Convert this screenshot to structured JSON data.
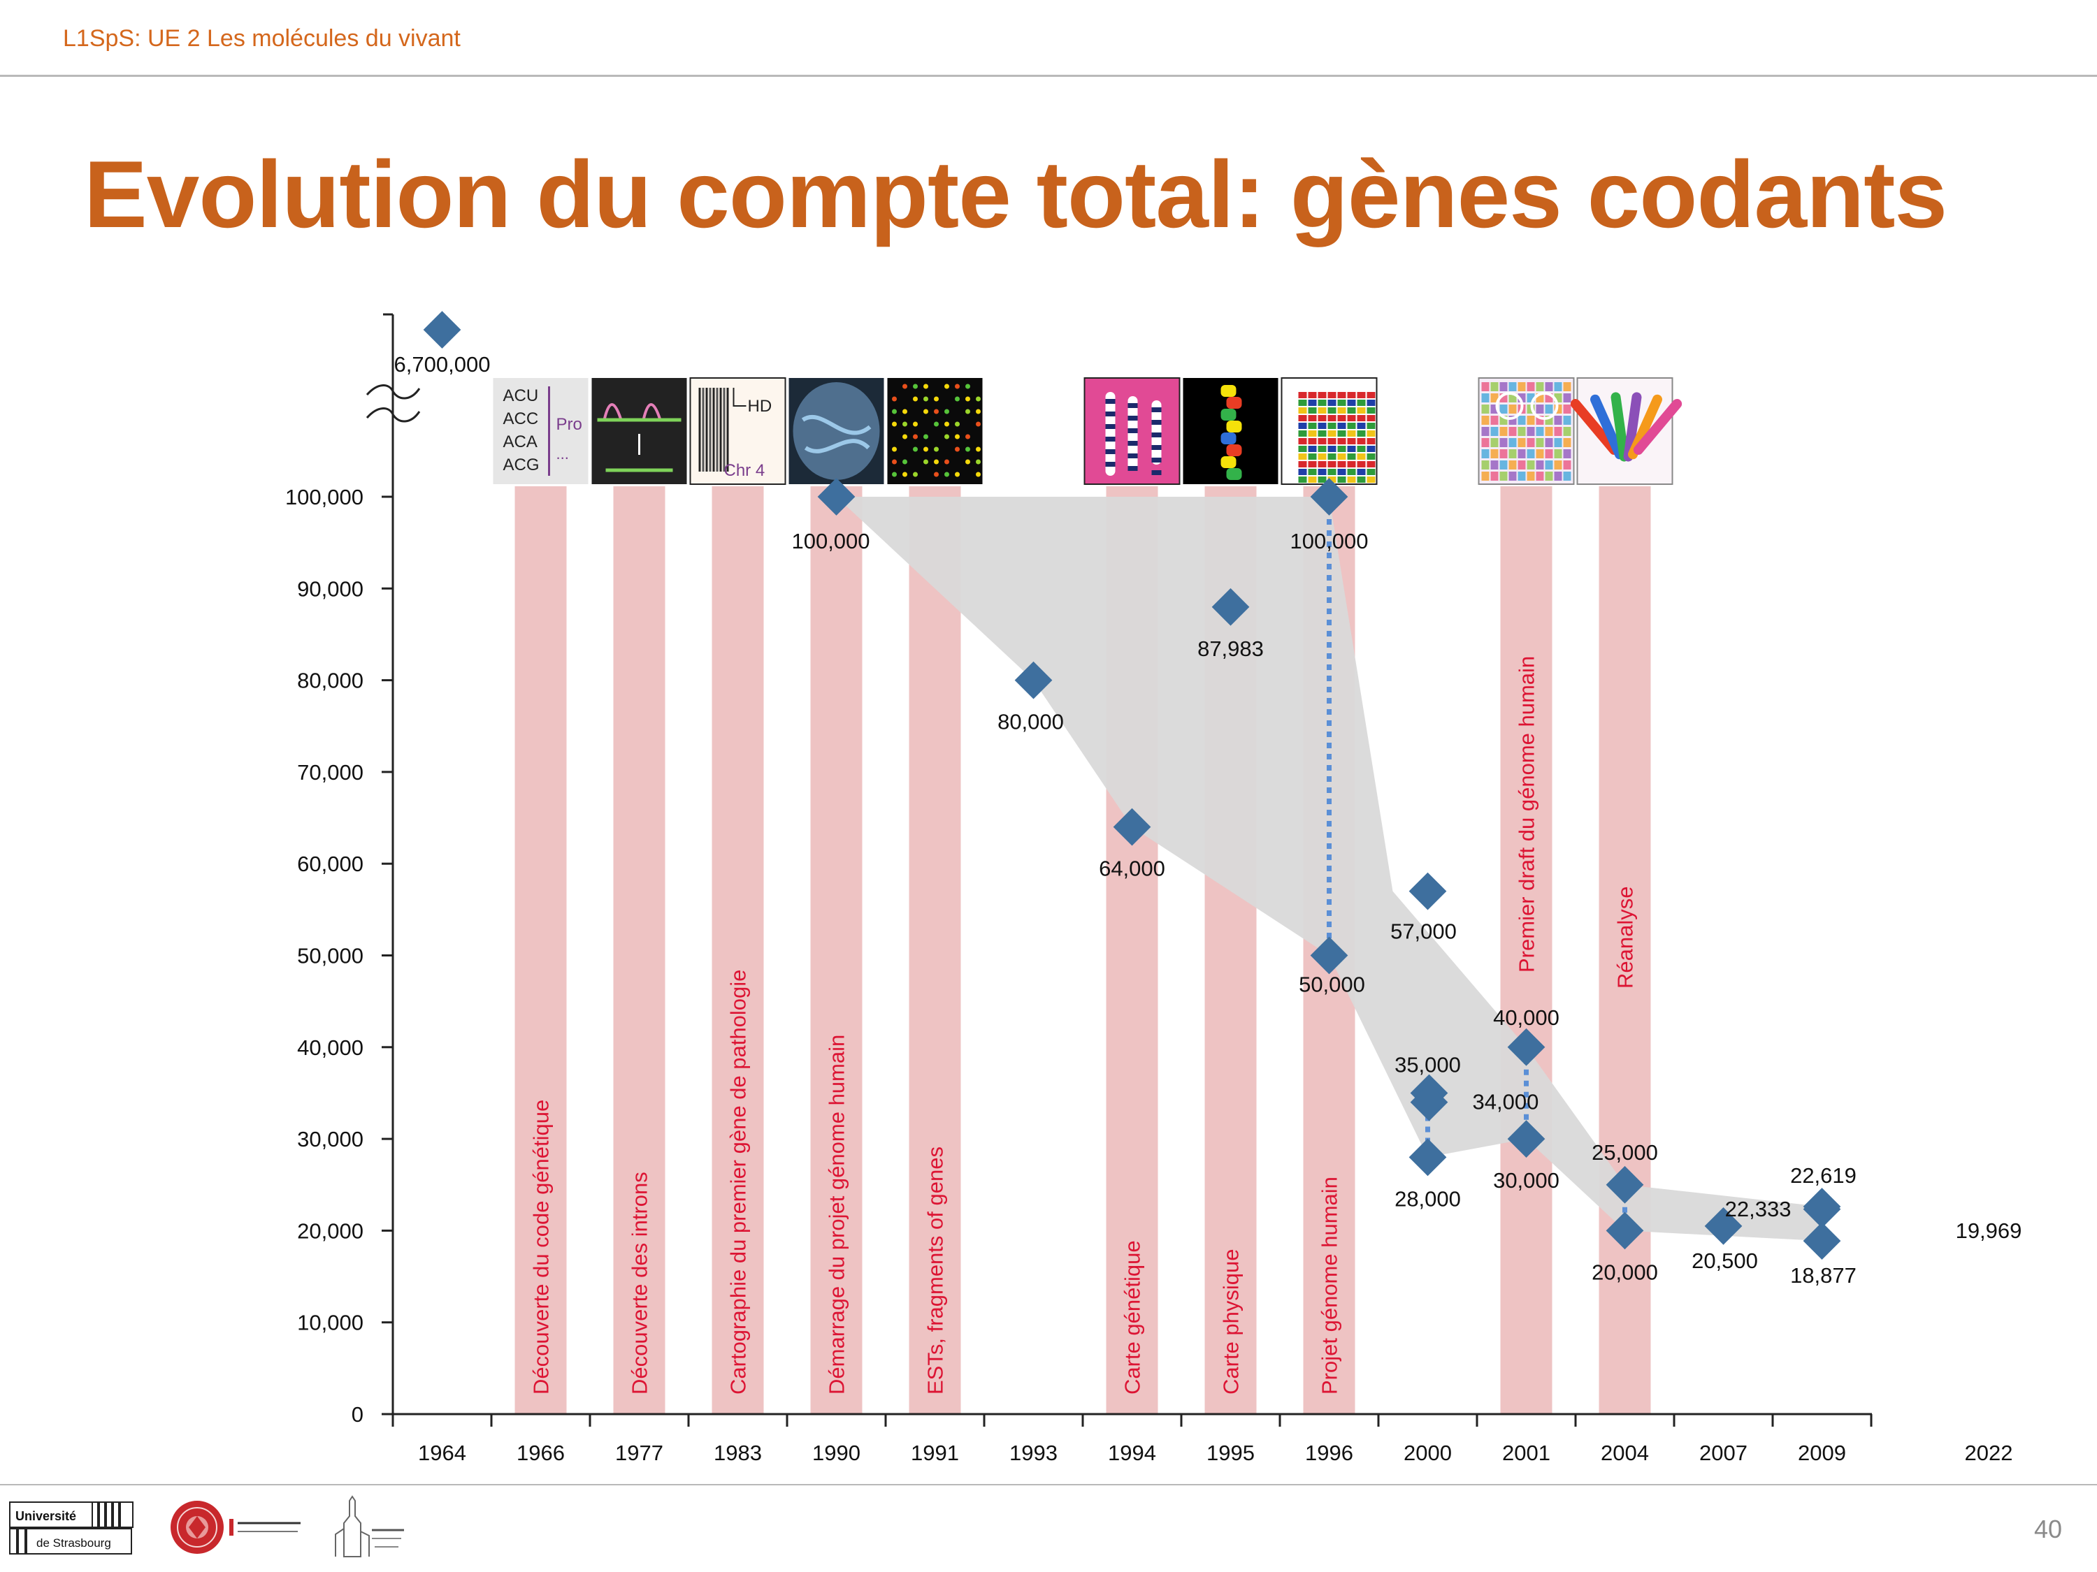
{
  "header": {
    "course": "L1SpS: UE 2 Les molécules du vivant"
  },
  "title": "Evolution du compte total: gènes codants",
  "page_number": "40",
  "logos": {
    "university_top": "Université",
    "university_bottom": "de Strasbourg"
  },
  "colors": {
    "accent": "#c8621c",
    "marker": "#3e6f9e",
    "band": "#eec3c3",
    "band_label": "#dc1433",
    "envelope": "#d9d9d9",
    "dotted_line": "#5b8fd6"
  },
  "chart_data": {
    "type": "scatter",
    "title": "",
    "xlabel": "",
    "ylabel": "",
    "ylim": [
      0,
      100000
    ],
    "y_ticks": [
      "0",
      "10,000",
      "20,000",
      "30,000",
      "40,000",
      "50,000",
      "60,000",
      "70,000",
      "80,000",
      "90,000",
      "100,000"
    ],
    "y_break": true,
    "categories": [
      "1964",
      "1966",
      "1977",
      "1983",
      "1990",
      "1991",
      "1993",
      "1994",
      "1995",
      "1996",
      "2000",
      "2001",
      "2004",
      "2007",
      "2009",
      "2022"
    ],
    "points": [
      {
        "year": "1964",
        "value": 6700000,
        "label": "6,700,000",
        "above_break": true
      },
      {
        "year": "1990",
        "value": 100000,
        "label": "100,000"
      },
      {
        "year": "1993",
        "value": 80000,
        "label": "80,000"
      },
      {
        "year": "1994",
        "value": 64000,
        "label": "64,000"
      },
      {
        "year": "1995",
        "value": 87983,
        "label": "87,983"
      },
      {
        "year": "1996",
        "value": 100000,
        "label": "100,000"
      },
      {
        "year": "1996",
        "value": 50000,
        "label": "50,000"
      },
      {
        "year": "2000",
        "value": 57000,
        "label": "57,000"
      },
      {
        "year": "2000",
        "value": 35000,
        "label": "35,000"
      },
      {
        "year": "2000",
        "value": 34000,
        "label": "34,000"
      },
      {
        "year": "2000",
        "value": 28000,
        "label": "28,000"
      },
      {
        "year": "2001",
        "value": 40000,
        "label": "40,000"
      },
      {
        "year": "2001",
        "value": 30000,
        "label": "30,000"
      },
      {
        "year": "2004",
        "value": 25000,
        "label": "25,000"
      },
      {
        "year": "2004",
        "value": 20000,
        "label": "20,000"
      },
      {
        "year": "2007",
        "value": 20500,
        "label": "20,500"
      },
      {
        "year": "2009",
        "value": 22619,
        "label": "22,619"
      },
      {
        "year": "2009",
        "value": 22333,
        "label": "22,333"
      },
      {
        "year": "2009",
        "value": 18877,
        "label": "18,877"
      }
    ],
    "unmarked_values": [
      {
        "year": "2022",
        "value": 19969,
        "label": "19,969"
      }
    ],
    "dotted_ranges": [
      {
        "year": "1996",
        "from": 50000,
        "to": 100000
      },
      {
        "year": "2000",
        "from": 28000,
        "to": 35000
      },
      {
        "year": "2001",
        "from": 30000,
        "to": 40000
      },
      {
        "year": "2004",
        "from": 20000,
        "to": 25000
      }
    ],
    "events": [
      {
        "year": "1966",
        "label": "Découverte du code génétique"
      },
      {
        "year": "1977",
        "label": "Découverte des introns"
      },
      {
        "year": "1983",
        "label": "Cartographie du premier gène de pathologie"
      },
      {
        "year": "1990",
        "label": "Démarrage du projet génome humain"
      },
      {
        "year": "1991",
        "label": "ESTs, fragments of genes"
      },
      {
        "year": "1994",
        "label": "Carte génétique"
      },
      {
        "year": "1995",
        "label": "Carte physique"
      },
      {
        "year": "1996",
        "label": "Projet génome humain"
      },
      {
        "year": "2001",
        "label": "Premier draft du génome humain"
      },
      {
        "year": "2004",
        "label": "Réanalyse"
      }
    ],
    "thumbnails": [
      {
        "year": "1966",
        "lines": [
          "ACU",
          "ACC",
          "ACA",
          "ACG"
        ],
        "tag": "Pro",
        "more": "..."
      },
      {
        "year": "1977"
      },
      {
        "year": "1983",
        "gene": "HD",
        "chromosome": "Chr 4"
      },
      {
        "year": "1990"
      },
      {
        "year": "1991"
      },
      {
        "year": "1994"
      },
      {
        "year": "1995"
      },
      {
        "year": "1996"
      },
      {
        "year": "2001"
      },
      {
        "year": "2004"
      }
    ]
  }
}
